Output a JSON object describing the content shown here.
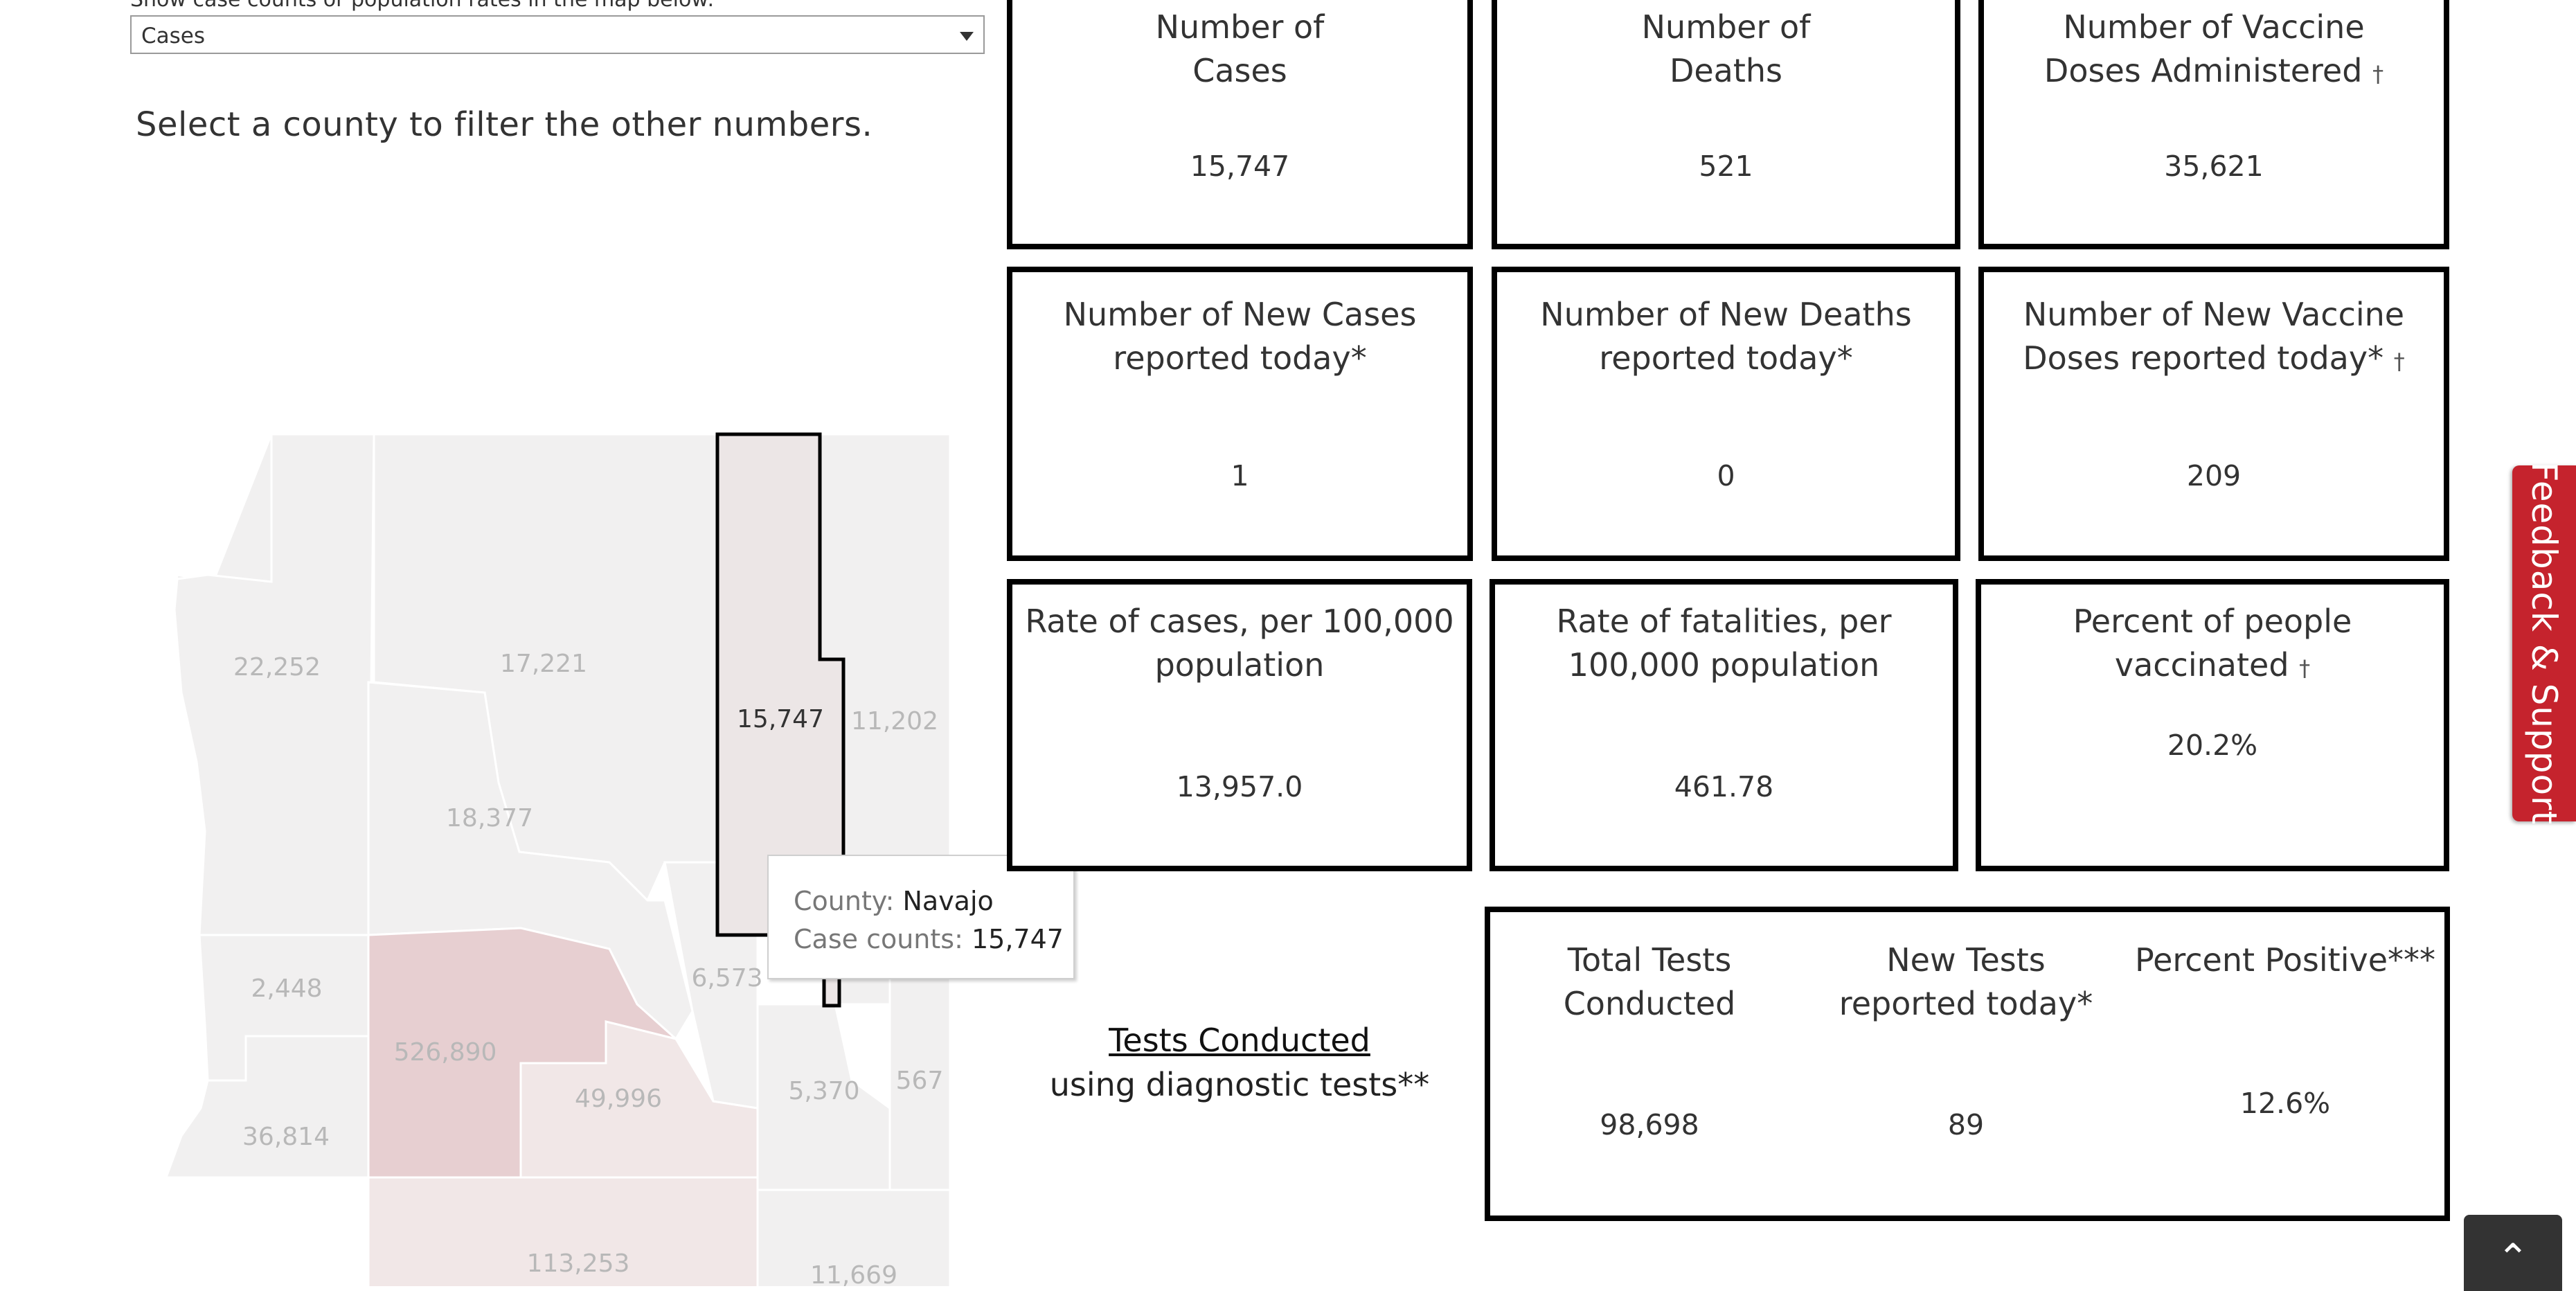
{
  "filter": {
    "label": "Show case counts or population rates in the map below:",
    "selected": "Cases"
  },
  "instruction": "Select a county to filter the other numbers.",
  "map": {
    "labels": [
      "22,252",
      "17,221",
      "15,747",
      "11,202",
      "18,377",
      "2,448",
      "526,890",
      "6,573",
      "49,996",
      "5,370",
      "567",
      "36,814",
      "113,253",
      "11,669"
    ],
    "colors": {
      "base": "#f1f0f0",
      "highlight_strong": "#e7cfd1",
      "highlight_light": "#f1e7e7",
      "selected": "#ece6e6",
      "border": "#ffffff",
      "selected_border": "#000000"
    }
  },
  "tooltip": {
    "county_label": "County:",
    "county_value": "Navajo",
    "cases_label": "Case counts:",
    "cases_value": "15,747"
  },
  "cards": [
    {
      "title_line1": "Number of",
      "title_line2": "Cases",
      "value": "15,747",
      "dagger": ""
    },
    {
      "title_line1": "Number of",
      "title_line2": "Deaths",
      "value": "521",
      "dagger": ""
    },
    {
      "title_line1": "Number of Vaccine",
      "title_line2": "Doses Administered",
      "value": "35,621",
      "dagger": "†"
    },
    {
      "title_line1": "Number of New Cases",
      "title_line2": "reported today*",
      "value": "1",
      "dagger": ""
    },
    {
      "title_line1": "Number of New Deaths",
      "title_line2": "reported today*",
      "value": "0",
      "dagger": ""
    },
    {
      "title_line1": "Number of New Vaccine",
      "title_line2": "Doses reported today*",
      "value": "209",
      "dagger": "†"
    },
    {
      "title_line1": "Rate of cases, per 100,000",
      "title_line2": "population",
      "value": "13,957.0",
      "dagger": ""
    },
    {
      "title_line1": "Rate of fatalities, per",
      "title_line2": "100,000 population",
      "value": "461.78",
      "dagger": ""
    },
    {
      "title_line1": "Percent of people vaccinated",
      "title_line2": "",
      "value": "20.2%",
      "dagger": "†"
    }
  ],
  "tests": {
    "link": "Tests Conducted",
    "subtitle": "using diagnostic tests**",
    "columns": [
      {
        "title_line1": "Total Tests",
        "title_line2": "Conducted",
        "value": "98,698"
      },
      {
        "title_line1": "New Tests",
        "title_line2": "reported today*",
        "value": "89"
      },
      {
        "title_line1": "Percent Positive***",
        "title_line2": "",
        "value": "12.6%"
      }
    ]
  },
  "feedback": "Feedback & Support",
  "scroll_top_icon": "chevron-up-icon"
}
